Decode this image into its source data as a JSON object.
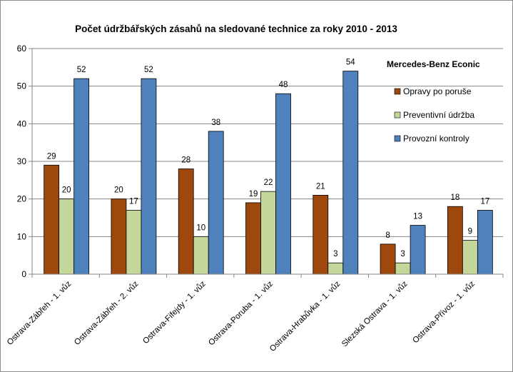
{
  "chart_data": {
    "type": "bar",
    "title": "Počet údržbářských zásahů na sledované technice za roky 2010 - 2013",
    "legend_title": "Mercedes-Benz Econic",
    "legend_position": "top-right",
    "xlabel": "",
    "ylabel": "",
    "ylim": [
      0,
      60
    ],
    "yticks": [
      0,
      10,
      20,
      30,
      40,
      50,
      60
    ],
    "grid": true,
    "categories": [
      "Ostrava-Zábřeh - 1. vůz",
      "Ostrava-Zábřeh - 2. vůz",
      "Ostrava-Fifejdy - 1. vůz",
      "Ostrava-Poruba - 1. vůz",
      "Ostrava-Hrabůvka - 1. vůz",
      "Slezská Ostrava - 1. vůz",
      "Ostrava-Přívoz - 1. vůz"
    ],
    "series": [
      {
        "name": "Opravy po poruše",
        "color": "#9E480E",
        "values": [
          29,
          20,
          28,
          19,
          21,
          8,
          18
        ]
      },
      {
        "name": "Preventivní údržba",
        "color": "#C4D79B",
        "values": [
          20,
          17,
          10,
          22,
          3,
          3,
          9
        ]
      },
      {
        "name": "Provozní kontroly",
        "color": "#4F81BD",
        "values": [
          52,
          52,
          38,
          48,
          54,
          13,
          17
        ]
      }
    ]
  }
}
